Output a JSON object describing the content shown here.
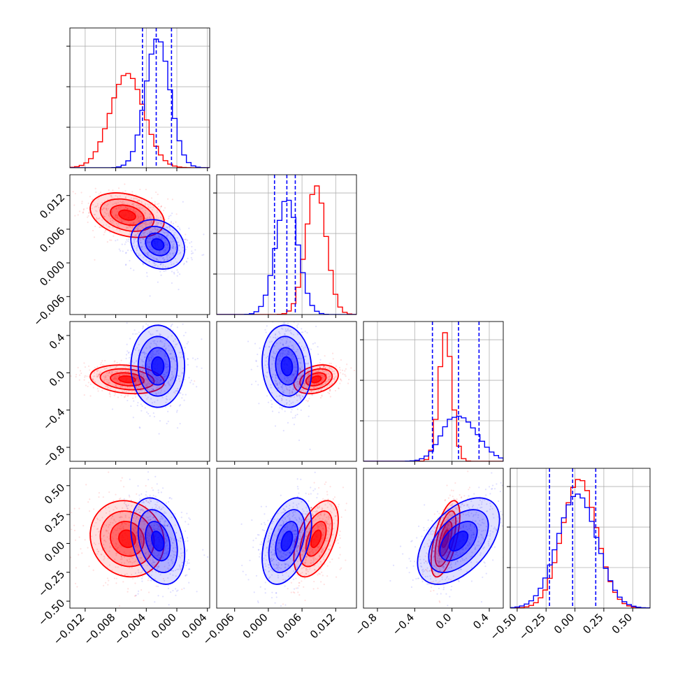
{
  "chart_data": {
    "type": "corner",
    "title": "",
    "parameter_labels": [
      "",
      "",
      "",
      ""
    ],
    "colors": {
      "series_a": "#ff0000",
      "series_b": "#0000ff",
      "quantile_lines": "#0000ff"
    },
    "grid": true,
    "legend": "none",
    "series": [
      {
        "color": "#ff0000",
        "means": [
          -0.0065,
          0.0085,
          -0.07,
          0.04
        ],
        "sigmas": [
          0.0022,
          0.0018,
          0.07,
          0.15
        ],
        "correlations": {
          "1-0": -0.3,
          "2-0": -0.2,
          "2-1": 0.3,
          "3-0": -0.1,
          "3-1": 0.5,
          "3-2": 0.6
        }
      },
      {
        "color": "#0000ff",
        "means": [
          -0.0025,
          0.0033,
          0.07,
          0.02
        ],
        "sigmas": [
          0.0016,
          0.002,
          0.2,
          0.17
        ],
        "correlations": {
          "1-0": -0.2,
          "2-0": 0.0,
          "2-1": -0.1,
          "3-0": -0.3,
          "3-1": 0.4,
          "3-2": 0.5
        }
      }
    ],
    "quantile_lines": [
      [
        -0.0045,
        -0.0027,
        -0.0007
      ],
      [
        0.0011,
        0.0033,
        0.0048
      ],
      [
        -0.21,
        0.07,
        0.29
      ],
      [
        -0.22,
        -0.02,
        0.18
      ]
    ],
    "ranges": [
      [
        -0.014,
        0.0043
      ],
      [
        -0.0092,
        0.0157
      ],
      [
        -0.95,
        0.55
      ],
      [
        -0.56,
        0.65
      ]
    ],
    "ticks": [
      {
        "values": [
          -0.012,
          -0.008,
          -0.004,
          0.0,
          0.004
        ],
        "labels": [
          "−0.012",
          "−0.008",
          "−0.004",
          "0.000",
          "0.004"
        ]
      },
      {
        "values": [
          -0.006,
          0.0,
          0.006,
          0.012
        ],
        "labels": [
          "−0.006",
          "0.000",
          "0.006",
          "0.012"
        ]
      },
      {
        "values": [
          -0.8,
          -0.4,
          0.0,
          0.4
        ],
        "labels": [
          "−0.8",
          "−0.4",
          "0.0",
          "0.4"
        ]
      },
      {
        "values": [
          -0.5,
          -0.25,
          0.0,
          0.25,
          0.5
        ],
        "labels": [
          "−0.50",
          "−0.25",
          "0.00",
          "0.25",
          "0.50"
        ]
      }
    ]
  }
}
